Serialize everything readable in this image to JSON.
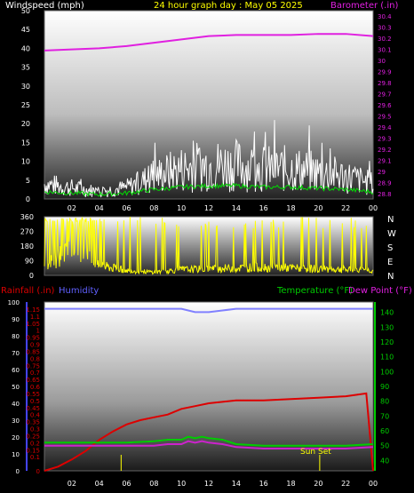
{
  "header": {
    "wind_label": "Windspeed (mph)",
    "title": "24 hour graph day : May 05 2025",
    "baro_label": "Barometer (.in)"
  },
  "bottom_header": {
    "rain_label": "Rainfall (.in)",
    "hum_label": "Humidity",
    "temp_label": "Temperature (°F)",
    "dew_label": "Dew Point (°F)"
  },
  "compass": [
    "N",
    "W",
    "S",
    "E",
    "N"
  ],
  "annotation": "Sun Set",
  "colors": {
    "windspeed": "#ffffff",
    "wind_avg": "#00dd00",
    "barometer": "#e020e0",
    "direction": "#ffff00",
    "rainfall": "#dd0000",
    "humidity": "#8080ff",
    "temperature": "#00cc00",
    "dewpoint": "#cc22cc",
    "axis_green": "#00cc00",
    "axis_blue": "#4444ff"
  },
  "chart_data": [
    {
      "type": "line",
      "title": "24 hour graph day : May 05 2025",
      "xlabel": "",
      "x_ticks": [
        "02",
        "04",
        "06",
        "08",
        "10",
        "12",
        "14",
        "16",
        "18",
        "20",
        "22",
        "00"
      ],
      "y_left": {
        "label": "Windspeed (mph)",
        "ticks": [
          0,
          5,
          10,
          15,
          20,
          25,
          30,
          35,
          40,
          45,
          50
        ],
        "lim": [
          0,
          50
        ]
      },
      "y_right": {
        "label": "Barometer (.in)",
        "ticks": [
          "28.8",
          "28.9",
          "29",
          "29.1",
          "29.2",
          "29.3",
          "29.4",
          "29.5",
          "29.6",
          "29.7",
          "29.8",
          "29.9",
          "30",
          "30.1",
          "30.2",
          "30.3",
          "30.4"
        ],
        "lim": [
          28.75,
          30.45
        ]
      },
      "series": [
        {
          "name": "Windspeed (mph)",
          "axis": "left",
          "hours": [
            0,
            2,
            4,
            6,
            8,
            10,
            12,
            14,
            16,
            18,
            20,
            22,
            24
          ],
          "values": [
            4,
            3,
            2,
            3,
            6,
            8,
            9,
            9,
            8,
            8,
            7,
            6,
            4
          ]
        },
        {
          "name": "Barometer (.in)",
          "axis": "right",
          "hours": [
            0,
            2,
            4,
            6,
            8,
            10,
            12,
            14,
            16,
            18,
            20,
            22,
            24
          ],
          "values": [
            30.09,
            30.1,
            30.11,
            30.13,
            30.16,
            30.19,
            30.22,
            30.23,
            30.23,
            30.23,
            30.24,
            30.24,
            30.22
          ]
        }
      ]
    },
    {
      "type": "line",
      "y_left": {
        "ticks": [
          0,
          90,
          180,
          270,
          360
        ],
        "lim": [
          0,
          360
        ]
      },
      "y_right_labels": [
        "N",
        "W",
        "S",
        "E",
        "N"
      ],
      "series": [
        {
          "name": "Wind Direction",
          "hours": [
            0,
            2,
            4,
            6,
            8,
            10,
            12,
            14,
            16,
            18,
            20,
            22,
            24
          ],
          "values": [
            40,
            200,
            60,
            30,
            20,
            35,
            40,
            45,
            50,
            45,
            40,
            35,
            30
          ]
        }
      ]
    },
    {
      "type": "line",
      "x_ticks": [
        "02",
        "04",
        "06",
        "08",
        "10",
        "12",
        "14",
        "16",
        "18",
        "20",
        "22",
        "00"
      ],
      "y_left_humidity": {
        "ticks": [
          0,
          10,
          20,
          30,
          40,
          50,
          60,
          70,
          80,
          90,
          100
        ],
        "lim": [
          0,
          100
        ]
      },
      "y_left_rain": {
        "ticks": [
          "0",
          "0.1",
          "0.15",
          "0.2",
          "0.25",
          "0.3",
          "0.35",
          "0.4",
          "0.45",
          "0.5",
          "0.55",
          "0.6",
          "0.65",
          "0.7",
          "0.75",
          "0.8",
          "0.85",
          "0.9",
          "0.95",
          "1",
          "1.05",
          "1.1",
          "1.15"
        ],
        "lim": [
          0,
          1.2
        ]
      },
      "y_right": {
        "ticks": [
          40,
          50,
          60,
          70,
          80,
          90,
          100,
          110,
          120,
          130,
          140
        ],
        "lim": [
          33,
          147
        ]
      },
      "series": [
        {
          "name": "Rainfall (.in)",
          "axis": "rain",
          "hours": [
            0,
            1,
            2,
            3,
            4,
            5,
            6,
            7,
            8,
            9,
            10,
            11,
            12,
            13,
            14,
            16,
            18,
            20,
            22,
            23.5,
            24
          ],
          "values": [
            0,
            0.03,
            0.08,
            0.14,
            0.22,
            0.28,
            0.33,
            0.36,
            0.38,
            0.4,
            0.44,
            0.46,
            0.48,
            0.49,
            0.5,
            0.5,
            0.51,
            0.52,
            0.53,
            0.55,
            0.0
          ]
        },
        {
          "name": "Humidity",
          "axis": "humidity",
          "hours": [
            0,
            8,
            10,
            11,
            12,
            13,
            14,
            16,
            18,
            20,
            22,
            24
          ],
          "values": [
            96,
            96,
            96,
            94,
            94,
            95,
            96,
            96,
            96,
            96,
            96,
            96
          ]
        },
        {
          "name": "Temperature (°F)",
          "axis": "right",
          "hours": [
            0,
            4,
            6,
            8,
            9,
            10,
            10.5,
            11,
            11.5,
            12,
            13,
            14,
            16,
            18,
            20,
            22,
            24
          ],
          "values": [
            52,
            52,
            52,
            53,
            54,
            54,
            56,
            55,
            56,
            55,
            54,
            51,
            50,
            50,
            50,
            50,
            51
          ]
        },
        {
          "name": "Dew Point (°F)",
          "axis": "right",
          "hours": [
            0,
            4,
            6,
            8,
            9,
            10,
            10.5,
            11,
            11.5,
            12,
            13,
            14,
            16,
            18,
            20,
            22,
            24
          ],
          "values": [
            50,
            50,
            50,
            50,
            51,
            51,
            53,
            52,
            53,
            52,
            51,
            49,
            48,
            48,
            48,
            48,
            49
          ]
        }
      ],
      "markers": [
        {
          "hour": 5.6,
          "label": ""
        },
        {
          "hour": 20.1,
          "label": "Sun Set"
        }
      ]
    }
  ]
}
